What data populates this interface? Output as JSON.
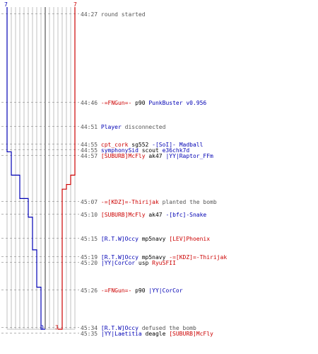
{
  "colors": {
    "team_blue": "#0000b4",
    "team_red": "#cc0000",
    "grid": "#c0c0c0",
    "center_line": "#555555",
    "dash": "#999999",
    "text_gray": "#555555"
  },
  "scores": {
    "blue_start": "7",
    "red_start": "7",
    "blue_end": "0",
    "red_end": "3"
  },
  "chart_data": {
    "type": "line",
    "title": "",
    "xlabel": "",
    "ylabel": "",
    "series": [
      {
        "name": "",
        "color": "#0000b4",
        "steps": [
          [
            0,
            7
          ],
          [
            31,
            6
          ],
          [
            36,
            5
          ],
          [
            41,
            4
          ],
          [
            45,
            3
          ],
          [
            52,
            2
          ],
          [
            60,
            1
          ],
          [
            69,
            0
          ]
        ]
      },
      {
        "name": "",
        "color": "#cc0000",
        "steps": [
          [
            0,
            7
          ],
          [
            36,
            6
          ],
          [
            38,
            5
          ],
          [
            39,
            4
          ],
          [
            69,
            3
          ]
        ]
      }
    ]
  },
  "events": [
    {
      "time": "44:27",
      "parts": [
        {
          "t": "round started",
          "c": "gray"
        }
      ]
    },
    {
      "time": "44:46",
      "parts": [
        {
          "t": "-=FNGun=-",
          "c": "red"
        },
        {
          "t": " p90 ",
          "c": "black"
        },
        {
          "t": "PunkBuster v0.956",
          "c": "blue"
        }
      ]
    },
    {
      "time": "44:51",
      "parts": [
        {
          "t": "Player",
          "c": "blue"
        },
        {
          "t": " disconnected",
          "c": "gray"
        }
      ]
    },
    {
      "time": "44:55",
      "parts": [
        {
          "t": "cpt_cork",
          "c": "red"
        },
        {
          "t": " sg552 ",
          "c": "black"
        },
        {
          "t": "-[SoI]- Madball",
          "c": "blue"
        }
      ]
    },
    {
      "time": "44:55",
      "parts": [
        {
          "t": "symphonySid",
          "c": "blue"
        },
        {
          "t": " scout ",
          "c": "black"
        },
        {
          "t": "e36chk7d",
          "c": "blue"
        }
      ]
    },
    {
      "time": "44:57",
      "parts": [
        {
          "t": "[SUBURB]McFly",
          "c": "red"
        },
        {
          "t": " ak47 ",
          "c": "black"
        },
        {
          "t": "|YY|Raptor_FFm",
          "c": "blue"
        }
      ]
    },
    {
      "time": "45:07",
      "parts": [
        {
          "t": "-=[KDZ]=-Thirijak",
          "c": "red"
        },
        {
          "t": " planted the bomb",
          "c": "gray"
        }
      ]
    },
    {
      "time": "45:10",
      "parts": [
        {
          "t": "[SUBURB]McFly",
          "c": "red"
        },
        {
          "t": " ak47 ",
          "c": "black"
        },
        {
          "t": "-[bfc]-Snake",
          "c": "blue"
        }
      ]
    },
    {
      "time": "45:15",
      "parts": [
        {
          "t": "[R.T.W]Occy",
          "c": "blue"
        },
        {
          "t": " mp5navy ",
          "c": "black"
        },
        {
          "t": "[LEV]Phoenix",
          "c": "red"
        }
      ]
    },
    {
      "time": "45:19",
      "parts": [
        {
          "t": "[R.T.W]Occy",
          "c": "blue"
        },
        {
          "t": " mp5navy ",
          "c": "black"
        },
        {
          "t": "-=[KDZ]=-Thirijak",
          "c": "red"
        }
      ]
    },
    {
      "time": "45:20",
      "parts": [
        {
          "t": "|YY|CorCor",
          "c": "blue"
        },
        {
          "t": " usp ",
          "c": "black"
        },
        {
          "t": "RyuSFII",
          "c": "red"
        }
      ]
    },
    {
      "time": "45:26",
      "parts": [
        {
          "t": "-=FNGun=-",
          "c": "red"
        },
        {
          "t": " p90 ",
          "c": "black"
        },
        {
          "t": "|YY|CorCor",
          "c": "blue"
        }
      ]
    },
    {
      "time": "45:34",
      "parts": [
        {
          "t": "[R.T.W]Occy",
          "c": "blue"
        },
        {
          "t": " defused the bomb",
          "c": "gray"
        }
      ]
    },
    {
      "time": "45:35",
      "parts": [
        {
          "t": "|YY|Laetitia",
          "c": "blue"
        },
        {
          "t": " deagle ",
          "c": "black"
        },
        {
          "t": "[SUBURB]McFly",
          "c": "red"
        }
      ]
    }
  ]
}
